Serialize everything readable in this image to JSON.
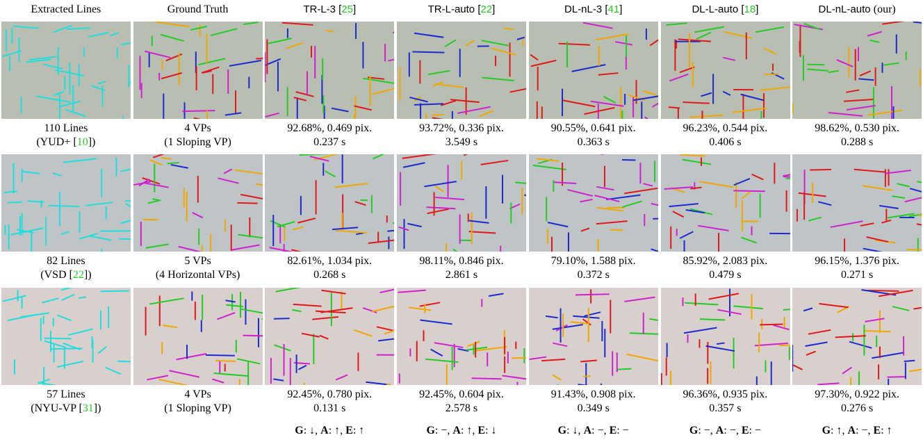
{
  "columns": [
    [
      {
        "text": "Extracted Lines"
      }
    ],
    [
      {
        "text": "Ground Truth"
      }
    ],
    [
      {
        "text": "TR-L-3 [",
        "sans": true
      },
      {
        "text": "25",
        "cite": true,
        "sans": true
      },
      {
        "text": "]",
        "sans": true
      }
    ],
    [
      {
        "text": "TR-L-auto [",
        "sans": true
      },
      {
        "text": "22",
        "cite": true,
        "sans": true
      },
      {
        "text": "]",
        "sans": true
      }
    ],
    [
      {
        "text": "DL-nL-3 [",
        "sans": true
      },
      {
        "text": "41",
        "cite": true,
        "sans": true
      },
      {
        "text": "]",
        "sans": true
      }
    ],
    [
      {
        "text": "DL-L-auto [",
        "sans": true
      },
      {
        "text": "18",
        "cite": true,
        "sans": true
      },
      {
        "text": "]",
        "sans": true
      }
    ],
    [
      {
        "text": "DL-nL-auto ",
        "sans": true
      },
      {
        "text": "(our)"
      }
    ]
  ],
  "rows": [
    [
      [
        "110 Lines",
        [
          {
            "text": "(YUD+ ["
          },
          {
            "text": "10",
            "cite": true
          },
          {
            "text": "])"
          }
        ]
      ],
      [
        "4 VPs",
        "(1 Sloping VP)"
      ],
      [
        "92.68%, 0.469 pix.",
        "0.237 s"
      ],
      [
        "93.72%, 0.336 pix.",
        "3.549 s"
      ],
      [
        "90.55%, 0.641 pix.",
        "0.363 s"
      ],
      [
        "96.23%, 0.544 pix.",
        "0.406 s"
      ],
      [
        "98.62%, 0.530 pix.",
        "0.288 s"
      ]
    ],
    [
      [
        "82 Lines",
        [
          {
            "text": "(VSD ["
          },
          {
            "text": "22",
            "cite": true
          },
          {
            "text": "])"
          }
        ]
      ],
      [
        "5 VPs",
        "(4 Horizontal VPs)"
      ],
      [
        "82.61%, 1.034 pix.",
        "0.268 s"
      ],
      [
        "98.11%, 0.846 pix.",
        "2.861 s"
      ],
      [
        "79.10%, 1.588 pix.",
        "0.372 s"
      ],
      [
        "85.92%, 2.083 pix.",
        "0.479 s"
      ],
      [
        "96.15%, 1.376 pix.",
        "0.271 s"
      ]
    ],
    [
      [
        "57 Lines",
        [
          {
            "text": "(NYU-VP ["
          },
          {
            "text": "31",
            "cite": true
          },
          {
            "text": "])"
          }
        ]
      ],
      [
        "4 VPs",
        "(1 Sloping VP)"
      ],
      [
        "92.45%, 0.780 pix.",
        "0.131 s"
      ],
      [
        "92.45%, 0.604 pix.",
        "2.578 s"
      ],
      [
        "91.43%, 0.908 pix.",
        "0.349 s"
      ],
      [
        "96.36%, 0.935 pix.",
        "0.357 s"
      ],
      [
        "97.30%, 0.922 pix.",
        "0.276 s"
      ]
    ]
  ],
  "summary": [
    null,
    null,
    [
      {
        "text": "G",
        "bold": true
      },
      {
        "text": ": ↓, "
      },
      {
        "text": "A",
        "bold": true
      },
      {
        "text": ": ↑, "
      },
      {
        "text": "E",
        "bold": true
      },
      {
        "text": ": ↑"
      }
    ],
    [
      {
        "text": "G",
        "bold": true
      },
      {
        "text": ": −, "
      },
      {
        "text": "A",
        "bold": true
      },
      {
        "text": ": ↑, "
      },
      {
        "text": "E",
        "bold": true
      },
      {
        "text": ": ↓"
      }
    ],
    [
      {
        "text": "G",
        "bold": true
      },
      {
        "text": ": ↓, "
      },
      {
        "text": "A",
        "bold": true
      },
      {
        "text": ": −, "
      },
      {
        "text": "E",
        "bold": true
      },
      {
        "text": ": −"
      }
    ],
    [
      {
        "text": "G",
        "bold": true
      },
      {
        "text": ": −, "
      },
      {
        "text": "A",
        "bold": true
      },
      {
        "text": ": −, "
      },
      {
        "text": "E",
        "bold": true
      },
      {
        "text": ": −"
      }
    ],
    [
      {
        "text": "G",
        "bold": true
      },
      {
        "text": ": ↑, "
      },
      {
        "text": "A",
        "bold": true
      },
      {
        "text": ": −, "
      },
      {
        "text": "E",
        "bold": true
      },
      {
        "text": ": ↑"
      }
    ]
  ]
}
